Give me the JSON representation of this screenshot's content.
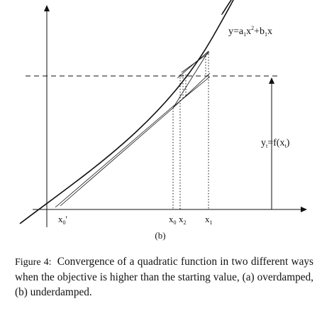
{
  "diagram": {
    "curve_label": {
      "pre": "y=a",
      "s1": "1",
      "mid": "x",
      "sup": "2",
      "plus": "+b",
      "s2": "1",
      "post": "x"
    },
    "yt_label": {
      "pre": "y",
      "sub": "t",
      "post": "=f(x",
      "sub2": "t",
      "close": ")"
    },
    "ticks": {
      "x0prime": {
        "x": "x",
        "sub": "0",
        "prime": "'"
      },
      "x0": {
        "x": "x",
        "sub": "0"
      },
      "x2": {
        "x": "x",
        "sub": "2"
      },
      "x1": {
        "x": "x",
        "sub": "1"
      }
    },
    "panel_label": "(b)"
  },
  "caption": {
    "label": "Figure 4:",
    "text": "Convergence of a quadratic function in two different ways when the objective is higher than the starting value, (a) overdamped, (b) underdamped."
  }
}
